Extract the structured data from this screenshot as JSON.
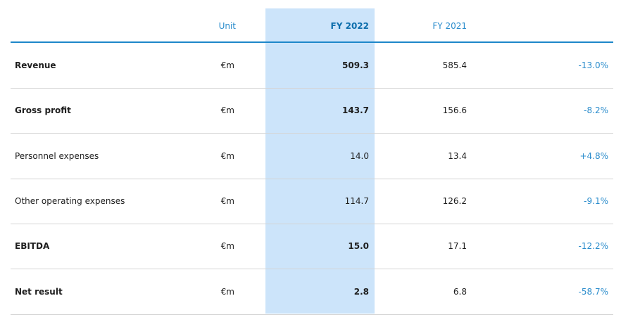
{
  "header": {
    "unit": "Unit",
    "fy2022": "FY 2022",
    "fy2021": "FY 2021"
  },
  "rows": [
    {
      "label": "Revenue",
      "unit": "€m",
      "fy2022": "509.3",
      "fy2021": "585.4",
      "change": "-13.0%",
      "bold": true
    },
    {
      "label": "Gross profit",
      "unit": "€m",
      "fy2022": "143.7",
      "fy2021": "156.6",
      "change": "-8.2%",
      "bold": true
    },
    {
      "label": "Personnel expenses",
      "unit": "€m",
      "fy2022": "14.0",
      "fy2021": "13.4",
      "change": "+4.8%",
      "bold": false
    },
    {
      "label": "Other operating expenses",
      "unit": "€m",
      "fy2022": "114.7",
      "fy2021": "126.2",
      "change": "-9.1%",
      "bold": false
    },
    {
      "label": "EBITDA",
      "unit": "€m",
      "fy2022": "15.0",
      "fy2021": "17.1",
      "change": "-12.2%",
      "bold": true
    },
    {
      "label": "Net result",
      "unit": "€m",
      "fy2022": "2.8",
      "fy2021": "6.8",
      "change": "-58.7%",
      "bold": true
    }
  ]
}
